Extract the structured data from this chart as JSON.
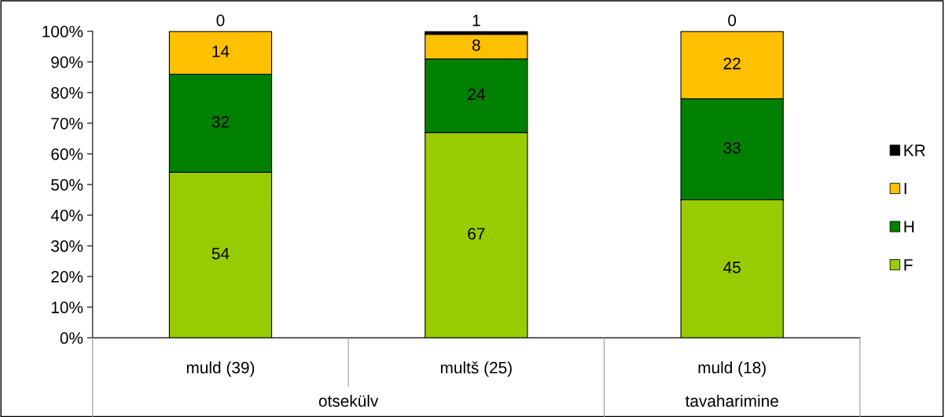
{
  "chart_data": {
    "type": "bar",
    "stacked": true,
    "data_labels": true,
    "grid": false,
    "legend": "right",
    "categories": [
      "muld (39)",
      "multš (25)",
      "muld (18)"
    ],
    "annotations": [
      "otsekülv",
      "tavaharimine"
    ],
    "series": [
      {
        "name": "F",
        "color": "#99cc00",
        "values": [
          54,
          67,
          45
        ]
      },
      {
        "name": "H",
        "color": "#008000",
        "values": [
          32,
          24,
          33
        ]
      },
      {
        "name": "I",
        "color": "#ffc000",
        "values": [
          14,
          8,
          22
        ]
      },
      {
        "name": "KR",
        "color": "#000000",
        "values": [
          0,
          1,
          0
        ]
      }
    ],
    "ylim": [
      0,
      100
    ],
    "yticks": [
      {
        "value": 0,
        "label": "0%"
      },
      {
        "value": 10,
        "label": "10%"
      },
      {
        "value": 20,
        "label": "20%"
      },
      {
        "value": 30,
        "label": "30%"
      },
      {
        "value": 40,
        "label": "40%"
      },
      {
        "value": 50,
        "label": "50%"
      },
      {
        "value": 60,
        "label": "60%"
      },
      {
        "value": 70,
        "label": "70%"
      },
      {
        "value": 80,
        "label": "80%"
      },
      {
        "value": 90,
        "label": "90%"
      },
      {
        "value": 100,
        "label": "100%"
      }
    ]
  }
}
